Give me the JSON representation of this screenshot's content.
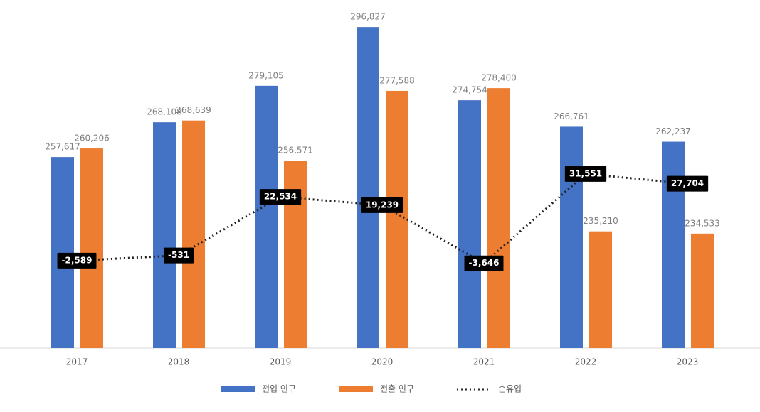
{
  "chart_data": {
    "type": "bar",
    "categories": [
      "2017",
      "2018",
      "2019",
      "2020",
      "2021",
      "2022",
      "2023"
    ],
    "series": [
      {
        "name": "전입 인구",
        "color": "#4472c4",
        "values": [
          257617,
          268108,
          279105,
          296827,
          274754,
          266761,
          262237
        ],
        "value_labels": [
          "257,617",
          "268,108",
          "279,105",
          "296,827",
          "274,754",
          "266,761",
          "262,237"
        ]
      },
      {
        "name": "전출 인구",
        "color": "#ed7d31",
        "values": [
          260206,
          268639,
          256571,
          277588,
          278400,
          235210,
          234533
        ],
        "value_labels": [
          "260,206",
          "268,639",
          "256,571",
          "277,588",
          "278,400",
          "235,210",
          "234,533"
        ]
      },
      {
        "name": "순유입",
        "color": "#222222",
        "type": "line",
        "axis": "y2",
        "values": [
          -2589,
          -531,
          22534,
          19239,
          -3646,
          31551,
          27704
        ],
        "value_labels": [
          "-2,589",
          "-531",
          "22,534",
          "19,239",
          "-3,646",
          "31,551",
          "27,704"
        ]
      }
    ],
    "ylim": [
      200000,
      305000
    ],
    "y2lim": [
      -37000,
      100000
    ],
    "grid": false,
    "legend": "bottom"
  }
}
